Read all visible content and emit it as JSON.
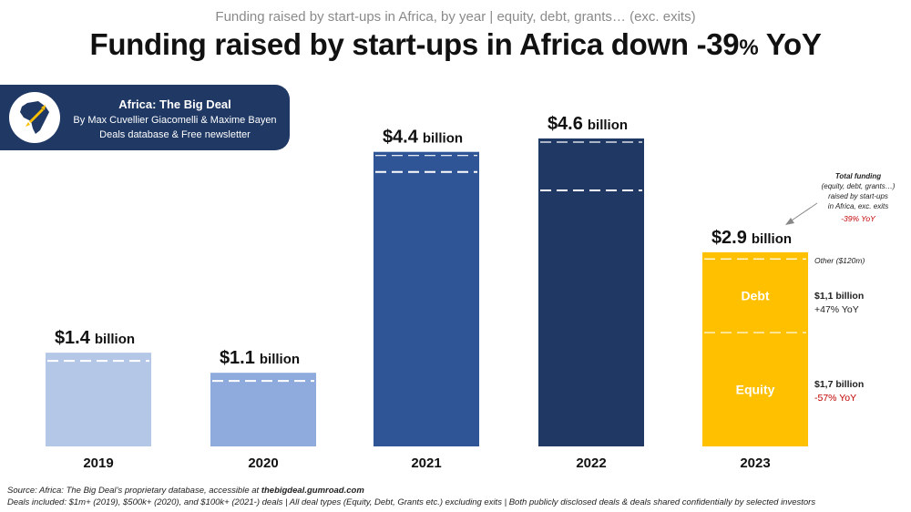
{
  "header": {
    "subtitle": "Funding raised by start-ups in Africa, by year | equity, debt, grants… (exc. exits)",
    "title_main": "Funding raised by start-ups in Africa down -39",
    "title_pct": "%",
    "title_end": " YoY"
  },
  "brand": {
    "name": "Africa: The Big Deal",
    "authors": "By Max Cuvellier Giacomelli & Maxime Bayen",
    "tagline": "Deals database & Free newsletter",
    "logo_icon": "africa-rocket-icon"
  },
  "chart_data": {
    "type": "bar",
    "categories": [
      "2019",
      "2020",
      "2021",
      "2022",
      "2023"
    ],
    "values": [
      1.4,
      1.1,
      4.4,
      4.6,
      2.9
    ],
    "value_labels": [
      {
        "amount": "$1.4",
        "unit": "billion"
      },
      {
        "amount": "$1.1",
        "unit": "billion"
      },
      {
        "amount": "$4.4",
        "unit": "billion"
      },
      {
        "amount": "$4.6",
        "unit": "billion"
      },
      {
        "amount": "$2.9",
        "unit": "billion"
      }
    ],
    "colors": [
      "#b4c7e7",
      "#8faadc",
      "#2f5597",
      "#1f3864",
      "#ffc000"
    ],
    "breakdown_2023": {
      "equity": 1.7,
      "debt": 1.1,
      "other": 0.12,
      "equity_label": "Equity",
      "debt_label": "Debt",
      "other_label": "Other ($120m)",
      "debt_value": "$1,1 billion",
      "debt_change": "+47% YoY",
      "equity_value": "$1,7 billion",
      "equity_change": "-57% YoY"
    },
    "annotation": {
      "line1": "Total funding",
      "line2": "(equity, debt, grants…)",
      "line3": "raised by start-ups",
      "line4": "in Africa, exc. exits",
      "line5": "-39% YoY"
    },
    "ylim": [
      0,
      4.6
    ]
  },
  "footer": {
    "source_prefix": "Source: Africa: The Big Deal’s proprietary database, accessible at ",
    "source_link": "thebigdeal.gumroad.com",
    "deals_note": "Deals included:  $1m+ (2019), $500k+ (2020), and $100k+ (2021-) deals | All deal types (Equity, Debt, Grants etc.) excluding exits | Both publicly disclosed deals & deals shared confidentially by selected investors"
  }
}
